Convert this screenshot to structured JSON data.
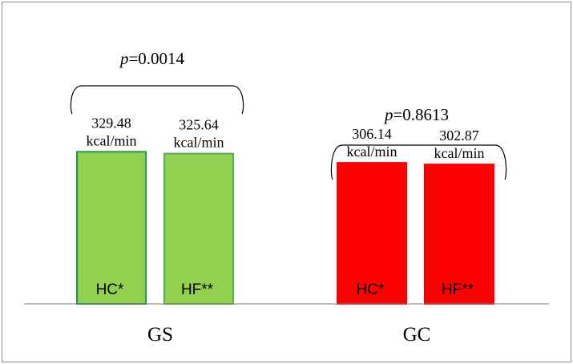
{
  "chart_data": {
    "type": "bar",
    "title": "",
    "xlabel": "",
    "ylabel": "",
    "ylim": [
      0,
      330
    ],
    "grid": false,
    "legend": "none",
    "groups": [
      {
        "label": "GS",
        "p_prefix": "p",
        "p_value": "=0.0014",
        "color": "#92d050",
        "bars": [
          {
            "label": "HC*",
            "value": 329.48,
            "value_text": "329.48",
            "unit": "kcal/min",
            "outline": "#1e9a4a"
          },
          {
            "label": "HF**",
            "value": 325.64,
            "value_text": "325.64",
            "unit": "kcal/min",
            "outline": "#4fb04f"
          }
        ]
      },
      {
        "label": "GC",
        "p_prefix": "p",
        "p_value": "=0.8613",
        "color": "#ff0000",
        "bars": [
          {
            "label": "HC*",
            "value": 306.14,
            "value_text": "306.14",
            "unit": "kcal/min",
            "outline": "#ff0000"
          },
          {
            "label": "HF**",
            "value": 302.87,
            "value_text": "302.87",
            "unit": "kcal/min",
            "outline": "#ff0000"
          }
        ]
      }
    ]
  }
}
